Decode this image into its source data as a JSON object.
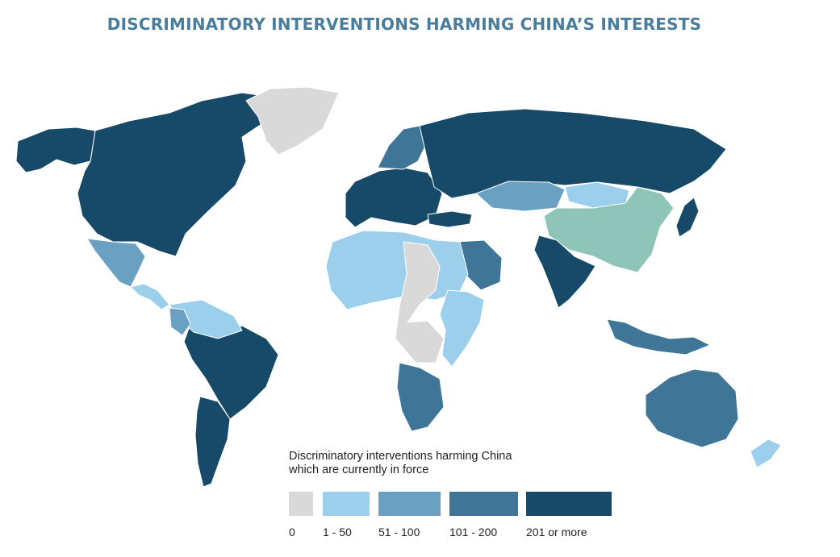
{
  "title": "DISCRIMINATORY INTERVENTIONS HARMING CHINA’S INTERESTS",
  "legend": {
    "title_line1": "Discriminatory interventions harming China",
    "title_line2": "which are currently in force",
    "classes": [
      {
        "label": "0",
        "color": "#d9d9d9"
      },
      {
        "label": "1 - 50",
        "color": "#9ccfeb"
      },
      {
        "label": "51 - 100",
        "color": "#6aa1c3"
      },
      {
        "label": "101 - 200",
        "color": "#3f7596"
      },
      {
        "label": "201 or more",
        "color": "#174a69"
      }
    ]
  },
  "map_colors": {
    "china": "#8fc5b9",
    "border": "#ffffff"
  },
  "regions": [
    {
      "name": "canada-usa",
      "class": 4
    },
    {
      "name": "alaska",
      "class": 4
    },
    {
      "name": "greenland",
      "class": 0
    },
    {
      "name": "mexico",
      "class": 2
    },
    {
      "name": "central-america",
      "class": 1
    },
    {
      "name": "brazil",
      "class": 4
    },
    {
      "name": "argentina",
      "class": 4
    },
    {
      "name": "northern-south-america",
      "class": 1
    },
    {
      "name": "colombia",
      "class": 2
    },
    {
      "name": "western-europe",
      "class": 4
    },
    {
      "name": "scandinavia",
      "class": 3
    },
    {
      "name": "russia",
      "class": 4
    },
    {
      "name": "kazakhstan",
      "class": 2
    },
    {
      "name": "mongolia",
      "class": 1
    },
    {
      "name": "china",
      "class": "china"
    },
    {
      "name": "turkey",
      "class": 4
    },
    {
      "name": "saudi-arabia",
      "class": 3
    },
    {
      "name": "india",
      "class": 4
    },
    {
      "name": "north-africa",
      "class": 1
    },
    {
      "name": "central-africa",
      "class": 0
    },
    {
      "name": "east-africa",
      "class": 1
    },
    {
      "name": "south-africa",
      "class": 3
    },
    {
      "name": "indonesia",
      "class": 3
    },
    {
      "name": "australia",
      "class": 3
    },
    {
      "name": "japan",
      "class": 4
    },
    {
      "name": "new-zealand",
      "class": 1
    }
  ]
}
